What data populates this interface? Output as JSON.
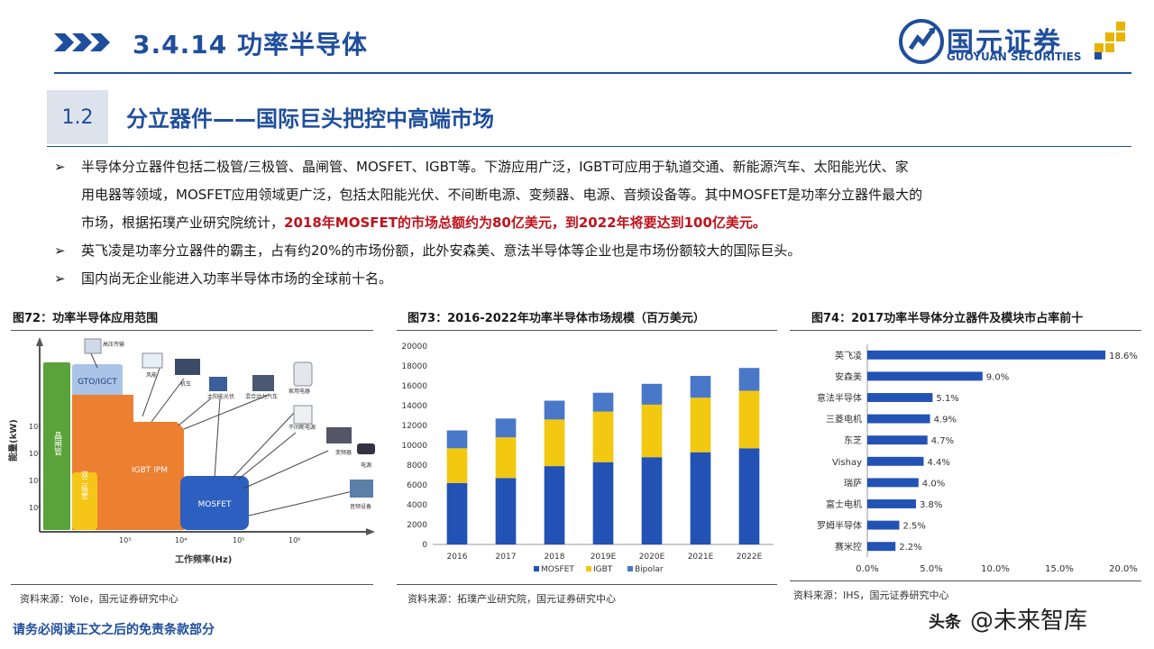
{
  "header": {
    "section_title": "3.4.14 功率半导体",
    "logo_cn": "国元证券",
    "logo_en": "GUOYUAN SECURITIES"
  },
  "subtitle": {
    "number": "1.2",
    "title": "分立器件——国际巨头把控中高端市场"
  },
  "bullets": {
    "arrow": "➢",
    "b1_part1": "半导体分立器件包括二极管/三极管、晶闸管、MOSFET、IGBT等。下游应用广泛，IGBT可应用于轨道交通、新能源汽车、太阳能光伏、家",
    "b1_part2": "用电器等领域，MOSFET应用领域更广泛，包括太阳能光伏、不间断电源、变频器、电源、音频设备等。其中MOSFET是功率分立器件最大的",
    "b1_part3": "市场，根据拓璞产业研究院统计，",
    "b1_highlight": "2018年MOSFET的市场总额约为80亿美元，到2022年将要达到100亿美元。",
    "b2": "英飞凌是功率分立器件的霸主，占有约20%的市场份额，此外安森美、意法半导体等企业也是市场份额较大的国际巨头。",
    "b3": "国内尚无企业能进入功率半导体市场的全球前十名。"
  },
  "fig72": {
    "title": "图72：功率半导体应用范围",
    "source": "资料来源：Yole，国元证券研究中心",
    "ylabel": "能量(kW)",
    "xlabel": "工作频率(Hz)",
    "yticks": [
      "10⁰",
      "10¹",
      "10²",
      "10³"
    ],
    "xticks": [
      "10³",
      "10⁴",
      "10⁵",
      "10⁶"
    ],
    "regions": {
      "thyristor": "晶闸管",
      "gto": "GTO/IGCT",
      "igbt": "IGBT IPM",
      "bipolar": "双二极管",
      "mosfet": "MOSFET"
    },
    "apps": [
      "高压传输",
      "风能",
      "机车",
      "太阳能光伏",
      "混合动力汽车",
      "家用电器",
      "不间断电源",
      "变频器",
      "电源",
      "音频设备"
    ]
  },
  "fig73": {
    "title": "图73：2016-2022年功率半导体市场规模（百万美元）",
    "source": "资料来源：拓璞产业研究院，国元证券研究中心"
  },
  "fig74": {
    "title": "图74：2017功率半导体分立器件及模块市占率前十",
    "source": "资料来源：IHS，国元证券研究中心"
  },
  "chart_data": [
    {
      "type": "bar",
      "stacked": true,
      "title": "图73：2016-2022年功率半导体市场规模（百万美元）",
      "categories": [
        "2016",
        "2017",
        "2018",
        "2019E",
        "2020E",
        "2021E",
        "2022E"
      ],
      "series": [
        {
          "name": "MOSFET",
          "color": "#2352b5",
          "values": [
            6200,
            6700,
            7900,
            8300,
            8800,
            9300,
            9700
          ]
        },
        {
          "name": "IGBT",
          "color": "#f2c811",
          "values": [
            3500,
            4100,
            4700,
            5100,
            5300,
            5500,
            5800
          ]
        },
        {
          "name": "Bipolar",
          "color": "#4a78c8",
          "values": [
            1800,
            1900,
            1900,
            1900,
            2100,
            2200,
            2300
          ]
        }
      ],
      "yticks": [
        "0",
        "2000",
        "4000",
        "6000",
        "8000",
        "10000",
        "12000",
        "14000",
        "16000",
        "18000",
        "20000"
      ],
      "ylim": [
        0,
        20000
      ],
      "legend": "bottom"
    },
    {
      "type": "bar",
      "orientation": "horizontal",
      "title": "图74：2017功率半导体分立器件及模块市占率前十",
      "categories": [
        "英飞凌",
        "安森美",
        "意法半导体",
        "三菱电机",
        "东芝",
        "Vishay",
        "瑞萨",
        "富士电机",
        "罗姆半导体",
        "赛米控"
      ],
      "values": [
        18.6,
        9.0,
        5.1,
        4.9,
        4.7,
        4.4,
        4.0,
        3.8,
        2.5,
        2.2
      ],
      "value_labels": [
        "18.6%",
        "9.0%",
        "5.1%",
        "4.9%",
        "4.7%",
        "4.4%",
        "4.0%",
        "3.8%",
        "2.5%",
        "2.2%"
      ],
      "xticks": [
        "0.0%",
        "5.0%",
        "10.0%",
        "15.0%",
        "20.0%"
      ],
      "xlim": [
        0,
        20
      ],
      "color": "#2352b5"
    }
  ],
  "footer": {
    "disclaimer": "请务必阅读正文之后的免责条款部分",
    "watermark_head": "头条",
    "watermark": "@未来智库"
  }
}
